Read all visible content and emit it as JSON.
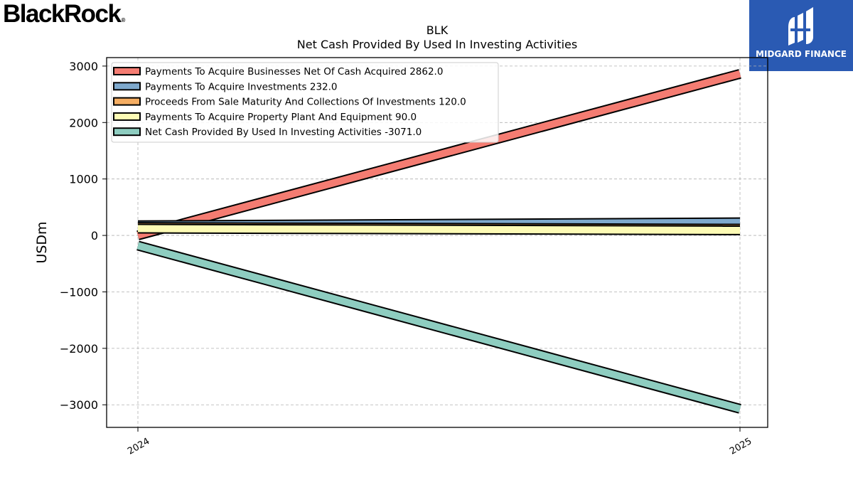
{
  "branding": {
    "company_logo_text": "BlackRock",
    "company_logo_mark": "®",
    "publisher_name": "MIDGARD FINANCE",
    "publisher_bg": "#2a5ab3"
  },
  "chart_data": {
    "type": "line",
    "title": "BLK",
    "subtitle": "Net Cash Provided By Used In Investing Activities",
    "xlabel": "",
    "ylabel": "USDm",
    "categories": [
      "2024",
      "2025"
    ],
    "ylim": [
      -3400,
      3150
    ],
    "yticks": [
      3000,
      2000,
      1000,
      0,
      -1000,
      -2000,
      -3000
    ],
    "ytick_labels": [
      "3000",
      "2000",
      "1000",
      "0",
      "−1000",
      "−2000",
      "−3000"
    ],
    "grid": true,
    "legend_position": "top-left",
    "series": [
      {
        "name": "Payments To Acquire Businesses Net Of Cash Acquired",
        "label": "Payments To Acquire Businesses Net Of Cash Acquired  2862.0",
        "values": [
          0,
          2862
        ],
        "color": "#f47c72"
      },
      {
        "name": "Payments To Acquire Investments",
        "label": "Payments To Acquire Investments  232.0",
        "values": [
          180,
          232
        ],
        "color": "#7ea9cd"
      },
      {
        "name": "Proceeds From Sale Maturity And Collections Of Investments",
        "label": "Proceeds From Sale Maturity And Collections Of Investments  120.0",
        "values": [
          150,
          120
        ],
        "color": "#f5ad62"
      },
      {
        "name": "Payments To Acquire Property Plant And Equipment",
        "label": "Payments To Acquire Property Plant And Equipment  90.0",
        "values": [
          120,
          90
        ],
        "color": "#fdfbb5"
      },
      {
        "name": "Net Cash Provided By Used In Investing Activities",
        "label": "Net Cash Provided By Used In Investing Activities  -3071.0",
        "values": [
          -180,
          -3071
        ],
        "color": "#8ecdc0"
      }
    ]
  }
}
